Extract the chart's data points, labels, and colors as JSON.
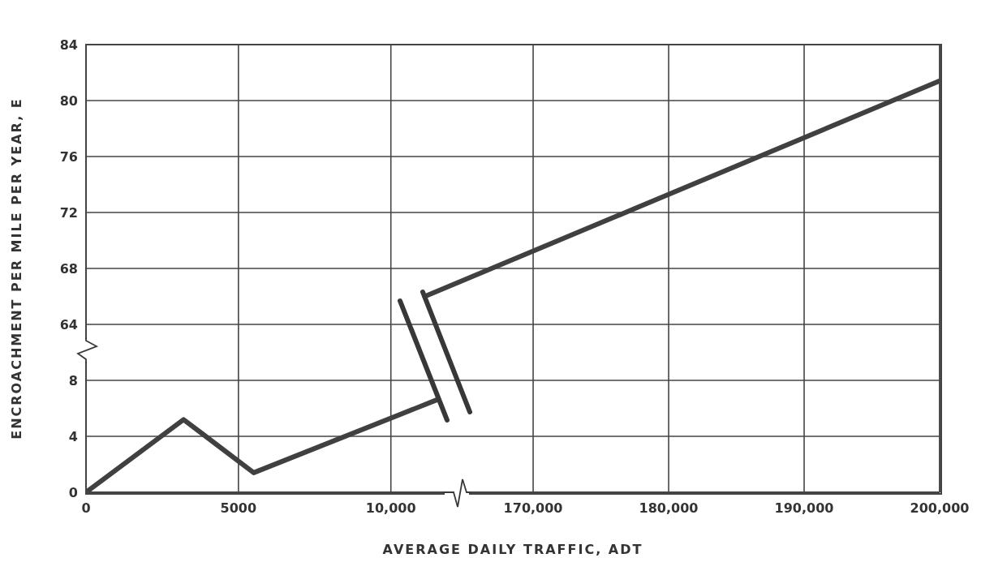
{
  "chart_data": [
    {
      "type": "line",
      "xlabel": "AVERAGE DAILY TRAFFIC, ADT",
      "ylabel": "ENCROACHMENT PER MILE PER YEAR, E",
      "x": [
        0,
        3200,
        5500,
        11500
      ],
      "values": [
        0,
        5.2,
        1.4,
        6.6
      ],
      "color": "#404040",
      "xlim": [
        0,
        28000
      ],
      "xticks": [
        0,
        5000,
        {
          "value": 10000,
          "label": "10,000"
        }
      ],
      "ylim": [
        0,
        32
      ],
      "yticks": [
        0,
        4,
        8
      ],
      "grid": true,
      "marker": "none",
      "line_style": "solid"
    },
    {
      "type": "line",
      "x": [
        162000,
        200000
      ],
      "values": [
        66.0,
        81.4
      ],
      "color": "#404040",
      "xlim": [
        137000,
        200000
      ],
      "xticks": [
        {
          "value": 170000,
          "label": "170,000"
        },
        {
          "value": 180000,
          "label": "180,000"
        },
        {
          "value": 190000,
          "label": "190,000"
        },
        {
          "value": 200000,
          "label": "200,000"
        }
      ],
      "ylim": [
        52,
        84
      ],
      "yticks": [
        64,
        68,
        72,
        76,
        80,
        84
      ],
      "grid": true,
      "marker": "none",
      "line_style": "solid"
    }
  ]
}
